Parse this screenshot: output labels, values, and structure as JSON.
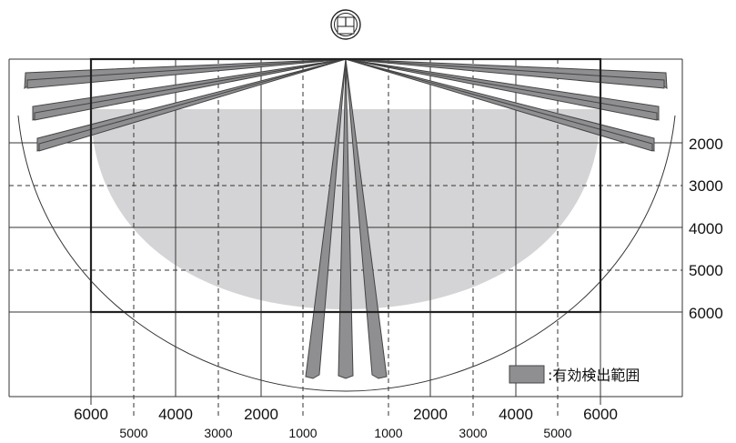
{
  "colors": {
    "background": "#ffffff",
    "grid": "#333333",
    "coverage": "#d4d4d6",
    "beam_fill": "#8f8f92",
    "beam_edge": "#444444",
    "outer_box": "#222222"
  },
  "sensor": {
    "icon": "ceiling-sensor-icon"
  },
  "x_axis": {
    "major_labels": [
      "6000",
      "4000",
      "2000",
      "2000",
      "4000",
      "6000"
    ],
    "minor_labels": [
      "5000",
      "3000",
      "1000",
      "1000",
      "3000",
      "5000"
    ]
  },
  "y_axis": {
    "labels": [
      "2000",
      "3000",
      "4000",
      "5000",
      "6000"
    ]
  },
  "legend": {
    "swatch_color": "#8f8f92",
    "text": ":有効検出範囲"
  }
}
